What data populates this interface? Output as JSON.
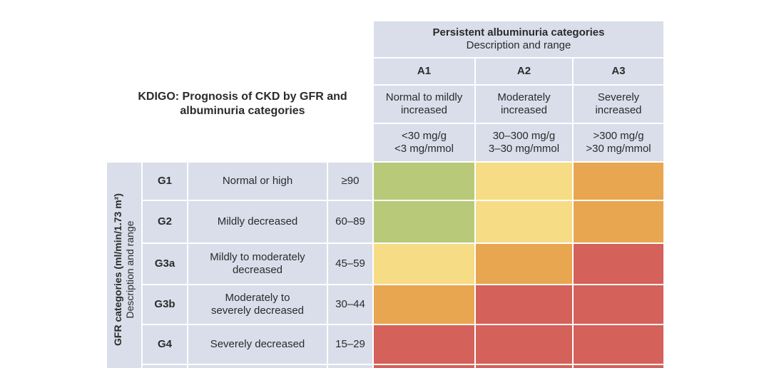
{
  "title": "KDIGO: Prognosis of CKD by GFR and albuminuria categories",
  "albuminuria": {
    "heading": "Persistent albuminuria categories",
    "subheading": "Description and range",
    "columns": [
      {
        "code": "A1",
        "description": "Normal to mildly increased",
        "range_us": "<30 mg/g",
        "range_si": "<3 mg/mmol"
      },
      {
        "code": "A2",
        "description": "Moderately increased",
        "range_us": "30–300 mg/g",
        "range_si": "3–30 mg/mmol"
      },
      {
        "code": "A3",
        "description": "Severely increased",
        "range_us": ">300 mg/g",
        "range_si": ">30 mg/mmol"
      }
    ]
  },
  "gfr": {
    "label": "GFR categories (ml/min/1.73 m²)",
    "sublabel": "Description and range",
    "rows": [
      {
        "code": "G1",
        "description": "Normal or high",
        "range": "≥90",
        "risk": [
          "low",
          "moderate",
          "high"
        ]
      },
      {
        "code": "G2",
        "description": "Mildly decreased",
        "range": "60–89",
        "risk": [
          "low",
          "moderate",
          "high"
        ]
      },
      {
        "code": "G3a",
        "description": "Mildly to moderately decreased",
        "range": "45–59",
        "risk": [
          "moderate",
          "high",
          "very-high"
        ]
      },
      {
        "code": "G3b",
        "description": "Moderately to severely decreased",
        "range": "30–44",
        "risk": [
          "high",
          "very-high",
          "very-high"
        ]
      },
      {
        "code": "G4",
        "description": "Severely decreased",
        "range": "15–29",
        "risk": [
          "very-high",
          "very-high",
          "very-high"
        ]
      },
      {
        "code": "",
        "description": "",
        "range": "",
        "risk": [
          "very-high",
          "very-high",
          "very-high"
        ]
      }
    ]
  },
  "colors": {
    "low": "#b9c97a",
    "moderate": "#f6dc85",
    "high": "#e8a650",
    "very-high": "#d4615a",
    "header": "#d9deea"
  }
}
